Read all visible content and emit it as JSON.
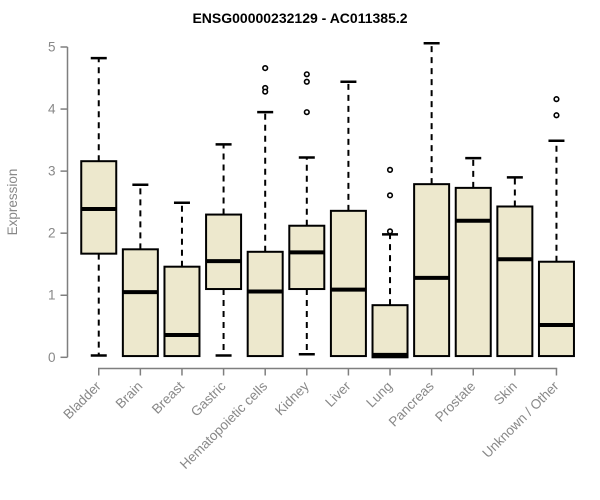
{
  "chart_data": {
    "type": "boxplot",
    "title": "ENSG00000232129 - AC011385.2",
    "xlabel": "",
    "ylabel": "Expression",
    "ylim": [
      0,
      5
    ],
    "yticks": [
      0,
      1,
      2,
      3,
      4,
      5
    ],
    "grid": false,
    "legend": "none",
    "categories": [
      "Bladder",
      "Brain",
      "Breast",
      "Gastric",
      "Hematopoietic cells",
      "Kidney",
      "Liver",
      "Lung",
      "Pancreas",
      "Prostate",
      "Skin",
      "Unknown / Other"
    ],
    "boxes": [
      {
        "category": "Bladder",
        "whisker_low": 0.03,
        "q1": 1.67,
        "median": 2.39,
        "q3": 3.16,
        "whisker_high": 4.82,
        "outliers": []
      },
      {
        "category": "Brain",
        "whisker_low": 0.02,
        "q1": 0.02,
        "median": 1.05,
        "q3": 1.74,
        "whisker_high": 2.78,
        "outliers": []
      },
      {
        "category": "Breast",
        "whisker_low": 0.02,
        "q1": 0.02,
        "median": 0.36,
        "q3": 1.46,
        "whisker_high": 2.49,
        "outliers": []
      },
      {
        "category": "Gastric",
        "whisker_low": 0.03,
        "q1": 1.1,
        "median": 1.55,
        "q3": 2.3,
        "whisker_high": 3.43,
        "outliers": []
      },
      {
        "category": "Hematopoietic cells",
        "whisker_low": 0.02,
        "q1": 0.02,
        "median": 1.06,
        "q3": 1.7,
        "whisker_high": 3.95,
        "outliers": [
          4.66,
          4.34,
          4.28
        ]
      },
      {
        "category": "Kidney",
        "whisker_low": 0.05,
        "q1": 1.1,
        "median": 1.69,
        "q3": 2.12,
        "whisker_high": 3.22,
        "outliers": [
          4.56,
          4.44,
          3.95
        ]
      },
      {
        "category": "Liver",
        "whisker_low": 0.02,
        "q1": 0.02,
        "median": 1.09,
        "q3": 2.36,
        "whisker_high": 4.44,
        "outliers": []
      },
      {
        "category": "Lung",
        "whisker_low": 0.0,
        "q1": 0.0,
        "median": 0.04,
        "q3": 0.84,
        "whisker_high": 1.98,
        "outliers": [
          3.02,
          2.61,
          2.03
        ]
      },
      {
        "category": "Pancreas",
        "whisker_low": 0.02,
        "q1": 0.02,
        "median": 1.28,
        "q3": 2.79,
        "whisker_high": 5.06,
        "outliers": []
      },
      {
        "category": "Prostate",
        "whisker_low": 0.02,
        "q1": 0.02,
        "median": 2.2,
        "q3": 2.73,
        "whisker_high": 3.21,
        "outliers": []
      },
      {
        "category": "Skin",
        "whisker_low": 0.02,
        "q1": 0.02,
        "median": 1.58,
        "q3": 2.43,
        "whisker_high": 2.9,
        "outliers": []
      },
      {
        "category": "Unknown / Other",
        "whisker_low": 0.02,
        "q1": 0.02,
        "median": 0.52,
        "q3": 1.54,
        "whisker_high": 3.49,
        "outliers": [
          4.16,
          3.9
        ]
      }
    ],
    "style": {
      "box_fill": "#ede8cd",
      "box_stroke": "#000000",
      "median_color": "#000000",
      "whisker_style": "dashed",
      "outlier_marker": "open-circle",
      "axis_color": "#7f7f7f",
      "label_color": "#888888",
      "title_color": "#000000",
      "background": "#ffffff"
    }
  }
}
